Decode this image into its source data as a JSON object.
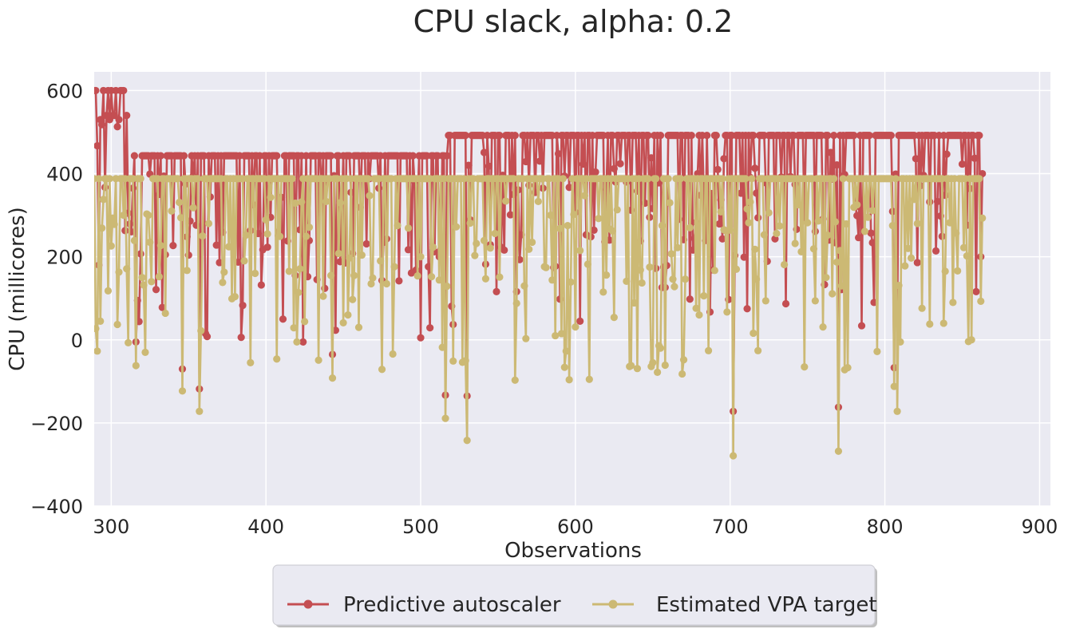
{
  "chart_data": {
    "type": "line",
    "title": "CPU slack, alpha: 0.2",
    "xlabel": "Observations",
    "ylabel": "CPU (millicores)",
    "xlim": [
      289,
      907
    ],
    "ylim": [
      -400,
      645
    ],
    "xticks": [
      300,
      400,
      500,
      600,
      700,
      800,
      900
    ],
    "yticks": [
      -400,
      -200,
      0,
      200,
      400,
      600
    ],
    "grid": true,
    "legend_position": "bottom-center",
    "x_start": 289,
    "x_end": 863,
    "series": [
      {
        "name": "Predictive autoscaler",
        "color": "#c44e52",
        "marker": "circle",
        "segments": [
          {
            "from": 289,
            "to": 310,
            "base": 600,
            "levels": [
              600,
              570,
              530,
              600,
              540,
              600,
              600
            ]
          },
          {
            "from": 311,
            "to": 517,
            "base": 443,
            "levels": [
              443
            ]
          },
          {
            "from": 518,
            "to": 863,
            "base": 492,
            "levels": [
              492
            ]
          }
        ],
        "end_value": 400,
        "dips": [
          {
            "x": 292,
            "y": 180
          },
          {
            "x": 316,
            "y": -5
          },
          {
            "x": 346,
            "y": -70
          },
          {
            "x": 357,
            "y": -118
          },
          {
            "x": 443,
            "y": -35
          },
          {
            "x": 516,
            "y": -133
          },
          {
            "x": 530,
            "y": -135
          },
          {
            "x": 702,
            "y": -172
          },
          {
            "x": 770,
            "y": -162
          },
          {
            "x": 806,
            "y": -67
          },
          {
            "x": 862,
            "y": 200
          }
        ]
      },
      {
        "name": "Estimated VPA target",
        "color": "#ccb974",
        "marker": "circle",
        "base": 388,
        "end_value": 293,
        "dips": [
          {
            "x": 291,
            "y": -27
          },
          {
            "x": 293,
            "y": 45
          },
          {
            "x": 316,
            "y": -62
          },
          {
            "x": 322,
            "y": -30
          },
          {
            "x": 346,
            "y": -123
          },
          {
            "x": 357,
            "y": -172
          },
          {
            "x": 443,
            "y": -92
          },
          {
            "x": 482,
            "y": -34
          },
          {
            "x": 516,
            "y": -189
          },
          {
            "x": 530,
            "y": -242
          },
          {
            "x": 561,
            "y": -97
          },
          {
            "x": 593,
            "y": -66
          },
          {
            "x": 596,
            "y": -96
          },
          {
            "x": 609,
            "y": -95
          },
          {
            "x": 640,
            "y": -69
          },
          {
            "x": 653,
            "y": -78
          },
          {
            "x": 669,
            "y": -82
          },
          {
            "x": 702,
            "y": -279
          },
          {
            "x": 770,
            "y": -268
          },
          {
            "x": 774,
            "y": -72
          },
          {
            "x": 795,
            "y": -28
          },
          {
            "x": 806,
            "y": -112
          },
          {
            "x": 808,
            "y": -172
          },
          {
            "x": 862,
            "y": 93
          }
        ]
      }
    ]
  }
}
